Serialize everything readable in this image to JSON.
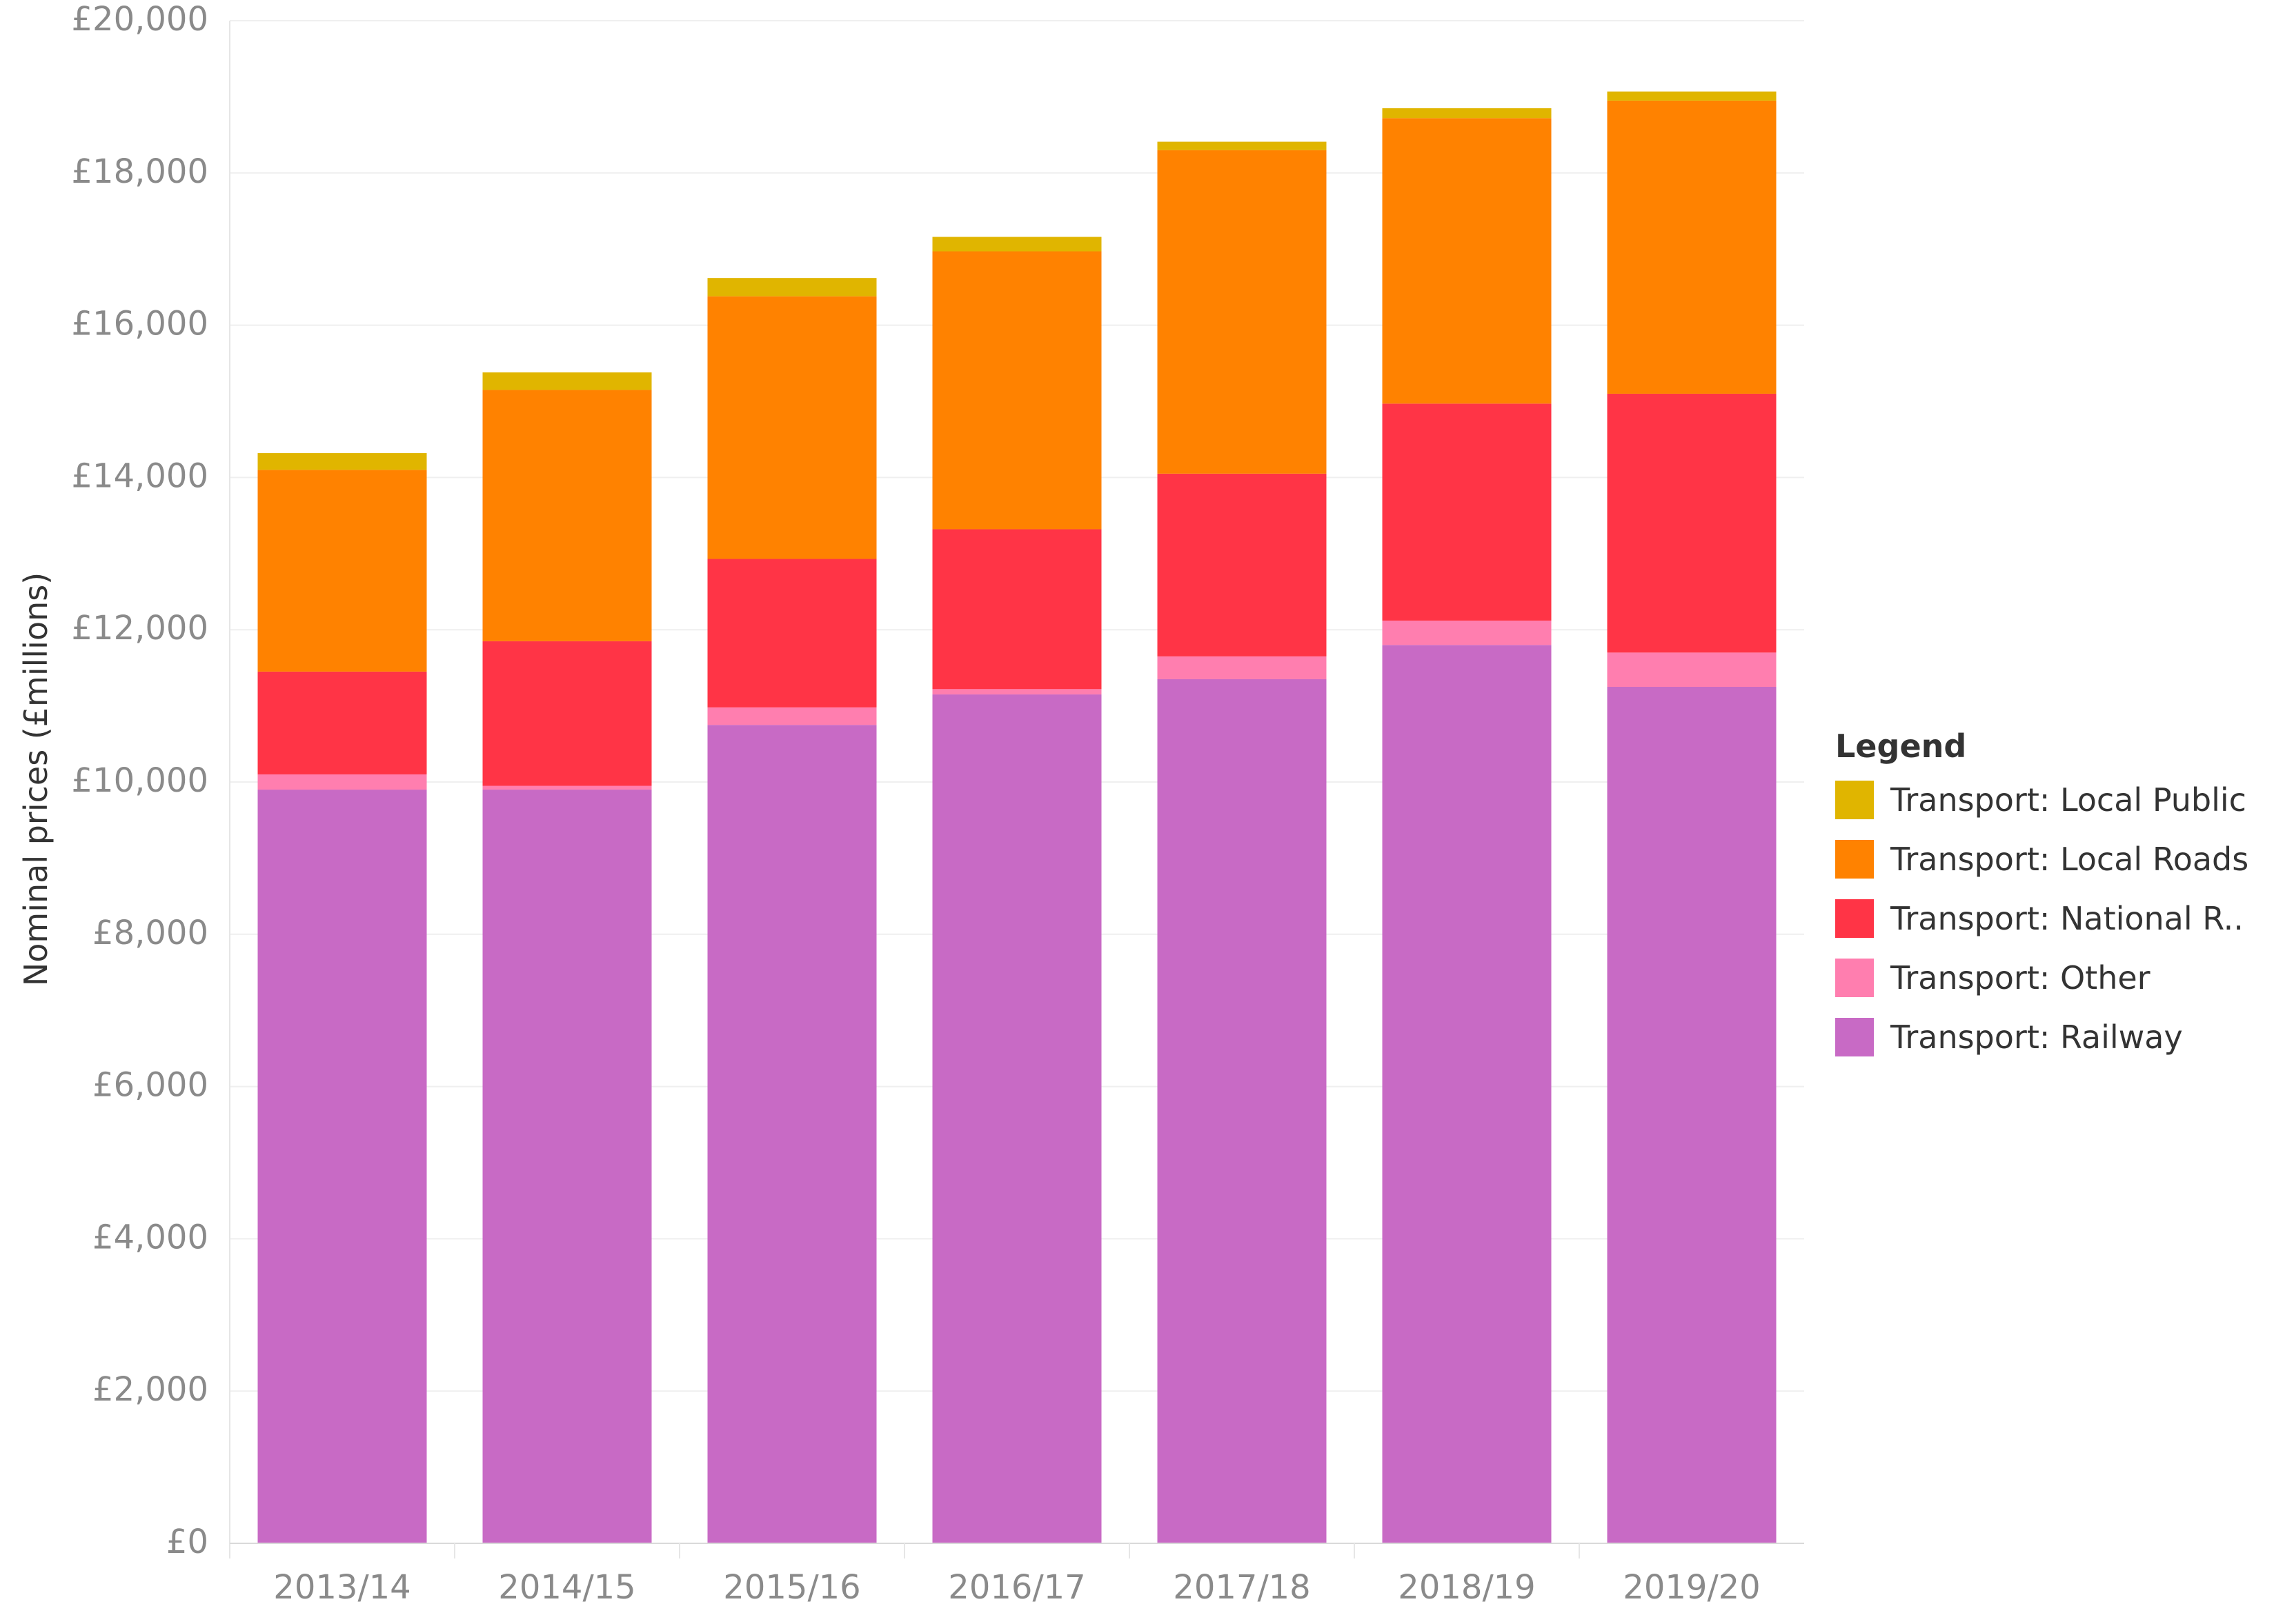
{
  "chart_data": {
    "type": "bar",
    "stacked": true,
    "title": "",
    "xlabel": "",
    "ylabel": "Nominal prices (£millions)",
    "ylim": [
      0,
      20000
    ],
    "yticks": [
      0,
      2000,
      4000,
      6000,
      8000,
      10000,
      12000,
      14000,
      16000,
      18000,
      20000
    ],
    "ytick_labels": [
      "£0",
      "£2,000",
      "£4,000",
      "£6,000",
      "£8,000",
      "£10,000",
      "£12,000",
      "£14,000",
      "£16,000",
      "£18,000",
      "£20,000"
    ],
    "grid": true,
    "categories": [
      "2013/14",
      "2014/15",
      "2015/16",
      "2016/17",
      "2017/18",
      "2018/19",
      "2019/20"
    ],
    "series": [
      {
        "name": "Transport: Railway",
        "color": "#c86ac5",
        "values": [
          9900,
          9900,
          10750,
          11150,
          11350,
          11800,
          11250
        ]
      },
      {
        "name": "Transport: Other",
        "color": "#ff7eaf",
        "values": [
          200,
          50,
          230,
          70,
          300,
          320,
          450
        ]
      },
      {
        "name": "Transport: National Roads",
        "color": "#ff3446",
        "values": [
          1350,
          1900,
          1950,
          2100,
          2400,
          2850,
          3400
        ]
      },
      {
        "name": "Transport: Local Roads",
        "color": "#ff8200",
        "values": [
          2650,
          3300,
          3450,
          3650,
          4250,
          3750,
          3850
        ]
      },
      {
        "name": "Transport: Local Public Transport",
        "color": "#e0b500",
        "values": [
          220,
          230,
          240,
          190,
          110,
          130,
          120
        ]
      }
    ],
    "legend": {
      "title": "Legend",
      "position": "right",
      "items": [
        {
          "label": "Transport: Local Public",
          "color": "#e0b500"
        },
        {
          "label": "Transport: Local Roads",
          "color": "#ff8200"
        },
        {
          "label": "Transport: National R..",
          "color": "#ff3446"
        },
        {
          "label": "Transport: Other",
          "color": "#ff7eaf"
        },
        {
          "label": "Transport: Railway",
          "color": "#c86ac5"
        }
      ]
    }
  }
}
